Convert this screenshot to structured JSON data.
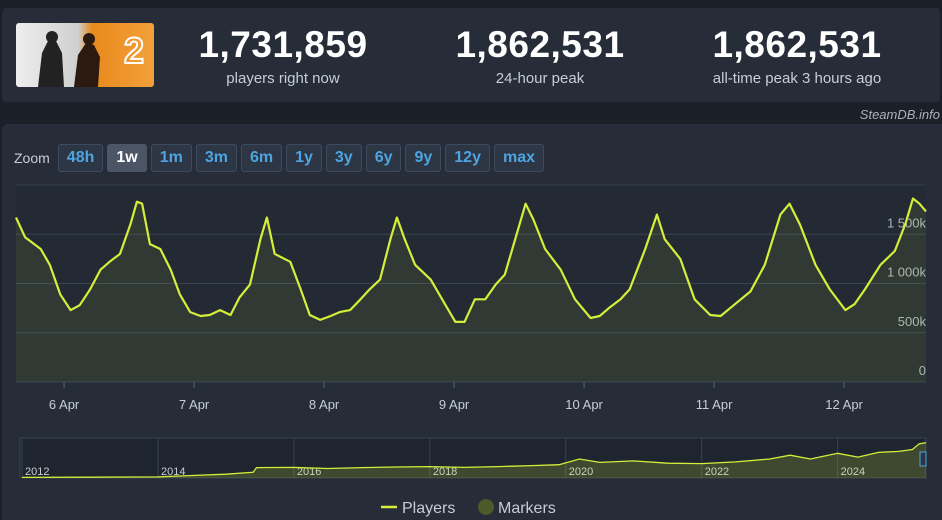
{
  "header": {
    "stats": [
      {
        "value": "1,731,859",
        "label": "players right now"
      },
      {
        "value": "1,862,531",
        "label": "24-hour peak"
      },
      {
        "value": "1,862,531",
        "label": "all-time peak 3 hours ago"
      }
    ]
  },
  "watermark": "SteamDB.info",
  "zoom": {
    "label": "Zoom",
    "options": [
      {
        "label": "48h",
        "selected": false
      },
      {
        "label": "1w",
        "selected": true
      },
      {
        "label": "1m",
        "selected": false
      },
      {
        "label": "3m",
        "selected": false
      },
      {
        "label": "6m",
        "selected": false
      },
      {
        "label": "1y",
        "selected": false
      },
      {
        "label": "3y",
        "selected": false
      },
      {
        "label": "6y",
        "selected": false
      },
      {
        "label": "9y",
        "selected": false
      },
      {
        "label": "12y",
        "selected": false
      },
      {
        "label": "max",
        "selected": false
      }
    ]
  },
  "chart_data": [
    {
      "type": "line",
      "x": [
        5.63,
        5.7,
        5.82,
        5.89,
        5.97,
        6.05,
        6.12,
        6.2,
        6.28,
        6.35,
        6.43,
        6.51,
        6.56,
        6.6,
        6.66,
        6.74,
        6.82,
        6.89,
        6.97,
        7.05,
        7.12,
        7.2,
        7.28,
        7.35,
        7.43,
        7.51,
        7.56,
        7.62,
        7.74,
        7.82,
        7.89,
        7.97,
        8.05,
        8.12,
        8.2,
        8.28,
        8.35,
        8.43,
        8.51,
        8.56,
        8.62,
        8.7,
        8.82,
        8.93,
        9.01,
        9.08,
        9.16,
        9.24,
        9.32,
        9.39,
        9.47,
        9.55,
        9.61,
        9.7,
        9.82,
        9.93,
        10.05,
        10.12,
        10.2,
        10.28,
        10.35,
        10.47,
        10.56,
        10.62,
        10.74,
        10.85,
        10.97,
        11.05,
        11.16,
        11.28,
        11.39,
        11.51,
        11.58,
        11.66,
        11.78,
        11.89,
        12.01,
        12.08,
        12.16,
        12.28,
        12.39,
        12.47,
        12.53,
        12.58,
        12.63
      ],
      "series": [
        {
          "name": "Players",
          "color": "#d4ee3a",
          "values": [
            1670000,
            1470000,
            1350000,
            1190000,
            890000,
            730000,
            780000,
            940000,
            1140000,
            1220000,
            1300000,
            1600000,
            1830000,
            1810000,
            1400000,
            1350000,
            1140000,
            890000,
            710000,
            670000,
            680000,
            730000,
            680000,
            860000,
            990000,
            1450000,
            1670000,
            1300000,
            1220000,
            940000,
            680000,
            630000,
            670000,
            710000,
            730000,
            840000,
            940000,
            1040000,
            1450000,
            1670000,
            1450000,
            1190000,
            1040000,
            790000,
            610000,
            610000,
            840000,
            840000,
            990000,
            1090000,
            1450000,
            1810000,
            1650000,
            1350000,
            1140000,
            840000,
            650000,
            670000,
            760000,
            840000,
            940000,
            1350000,
            1700000,
            1450000,
            1250000,
            840000,
            680000,
            670000,
            790000,
            920000,
            1190000,
            1700000,
            1810000,
            1600000,
            1190000,
            940000,
            730000,
            790000,
            940000,
            1190000,
            1330000,
            1600000,
            1862531,
            1810000,
            1731859
          ]
        }
      ],
      "markers": {
        "name": "Markers",
        "color": "#4a5a28"
      },
      "xlim": [
        5.63,
        12.63
      ],
      "xticks": [
        {
          "value": 6,
          "label": "6 Apr"
        },
        {
          "value": 7,
          "label": "7 Apr"
        },
        {
          "value": 8,
          "label": "8 Apr"
        },
        {
          "value": 9,
          "label": "9 Apr"
        },
        {
          "value": 10,
          "label": "10 Apr"
        },
        {
          "value": 11,
          "label": "11 Apr"
        },
        {
          "value": 12,
          "label": "12 Apr"
        }
      ],
      "ylim": [
        0,
        2000000
      ],
      "yticks": [
        0,
        {
          "value": 500000,
          "label": "500k"
        },
        {
          "value": 1000000,
          "label": "1 000k"
        },
        {
          "value": 1500000,
          "label": "1 500k"
        }
      ],
      "grid": true
    },
    {
      "type": "area",
      "x": [
        2012.0,
        2013.0,
        2014.0,
        2014.5,
        2015.0,
        2015.4,
        2015.45,
        2016.0,
        2016.5,
        2017.0,
        2017.5,
        2018.0,
        2018.5,
        2019.0,
        2019.5,
        2019.9,
        2020.2,
        2020.5,
        2021.0,
        2021.5,
        2022.0,
        2022.5,
        2023.0,
        2023.3,
        2023.6,
        2024.0,
        2024.3,
        2024.6,
        2024.9,
        2025.1,
        2025.2,
        2025.3
      ],
      "values": [
        30000,
        40000,
        60000,
        130000,
        200000,
        300000,
        550000,
        560000,
        500000,
        550000,
        580000,
        600000,
        560000,
        600000,
        650000,
        700000,
        1000000,
        820000,
        900000,
        780000,
        760000,
        850000,
        1000000,
        1200000,
        1000000,
        1300000,
        1100000,
        1350000,
        1400000,
        1500000,
        1800000,
        1862531
      ],
      "color": "#d4ee3a",
      "xlim": [
        2011.97,
        2025.3
      ],
      "xticks": [
        2012,
        2014,
        2016,
        2018,
        2020,
        2022,
        2024
      ],
      "ylim": [
        0,
        2000000
      ]
    }
  ]
}
